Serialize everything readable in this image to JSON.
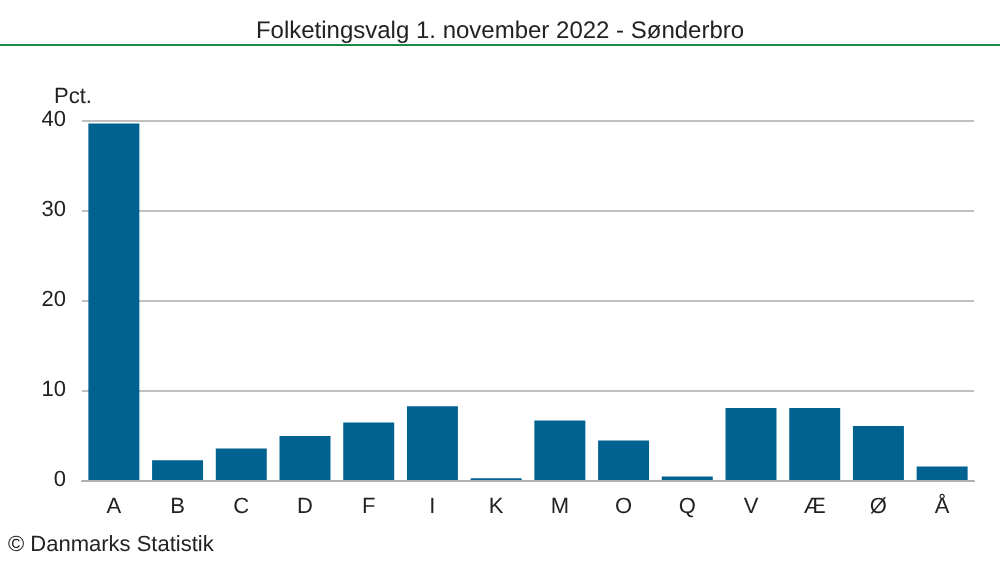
{
  "chart_data": {
    "type": "bar",
    "title": "Folketingsvalg 1. november 2022 - Sønderbro",
    "ylabel": "Pct.",
    "categories": [
      "A",
      "B",
      "C",
      "D",
      "F",
      "I",
      "K",
      "M",
      "O",
      "Q",
      "V",
      "Æ",
      "Ø",
      "Å"
    ],
    "values": [
      39.6,
      2.2,
      3.5,
      4.9,
      6.4,
      8.2,
      0.2,
      6.6,
      4.4,
      0.4,
      8.0,
      8.0,
      6.0,
      1.5
    ],
    "color": "#006290",
    "ylim": [
      0,
      40
    ],
    "yticks": [
      0,
      10,
      20,
      30,
      40
    ],
    "grid": "y",
    "annotations": [
      "© Danmarks Statistik"
    ]
  }
}
